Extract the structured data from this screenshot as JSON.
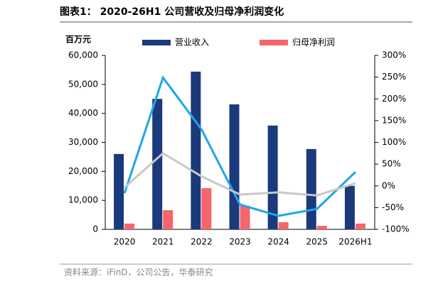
{
  "chart_data": {
    "type": "bar-line",
    "title": "图表1： 2020-26H1 公司营收及归母净利润变化",
    "y_label": "百万元",
    "source": "资料来源：iFinD，公司公告，华泰研究",
    "categories": [
      "2020",
      "2021",
      "2022",
      "2023",
      "2024",
      "2025",
      "2026H1"
    ],
    "series": [
      {
        "name": "营业收入",
        "color": "#1b3a7c",
        "kind": "bar",
        "values": [
          26000,
          45000,
          54400,
          43100,
          35800,
          27700,
          15000
        ]
      },
      {
        "name": "归母净利润",
        "color": "#f4666c",
        "kind": "bar",
        "values": [
          2000,
          6600,
          14200,
          8100,
          2450,
          1200,
          2000
        ]
      },
      {
        "color": "#1ea6e8",
        "kind": "line",
        "axis": "y2",
        "values": [
          -17,
          249,
          130,
          -43,
          -69,
          -53,
          32
        ]
      },
      {
        "color": "#c8c8c8",
        "kind": "line",
        "axis": "y2",
        "values": [
          -4,
          75,
          22,
          -20,
          -15,
          -22,
          6
        ]
      }
    ],
    "ylim": [
      0,
      60000
    ],
    "yticks": [
      0,
      {
        "value": 10000,
        "label": "10,000"
      },
      {
        "value": 20000,
        "label": "20,000"
      },
      {
        "value": 30000,
        "label": "30,000"
      },
      {
        "value": 40000,
        "label": "40,000"
      },
      {
        "value": 50000,
        "label": "50,000"
      },
      {
        "value": 60000,
        "label": "60,000"
      }
    ],
    "y2lim": [
      -100,
      300
    ],
    "y2ticks": [
      {
        "value": -100,
        "label": "-100%"
      },
      {
        "value": -50,
        "label": "-50%"
      },
      {
        "value": 0,
        "label": "0%"
      },
      {
        "value": 50,
        "label": "50%"
      },
      {
        "value": 100,
        "label": "100%"
      },
      {
        "value": 150,
        "label": "150%"
      },
      {
        "value": 200,
        "label": "200%"
      },
      {
        "value": 250,
        "label": "250%"
      },
      {
        "value": 300,
        "label": "300%"
      }
    ]
  }
}
